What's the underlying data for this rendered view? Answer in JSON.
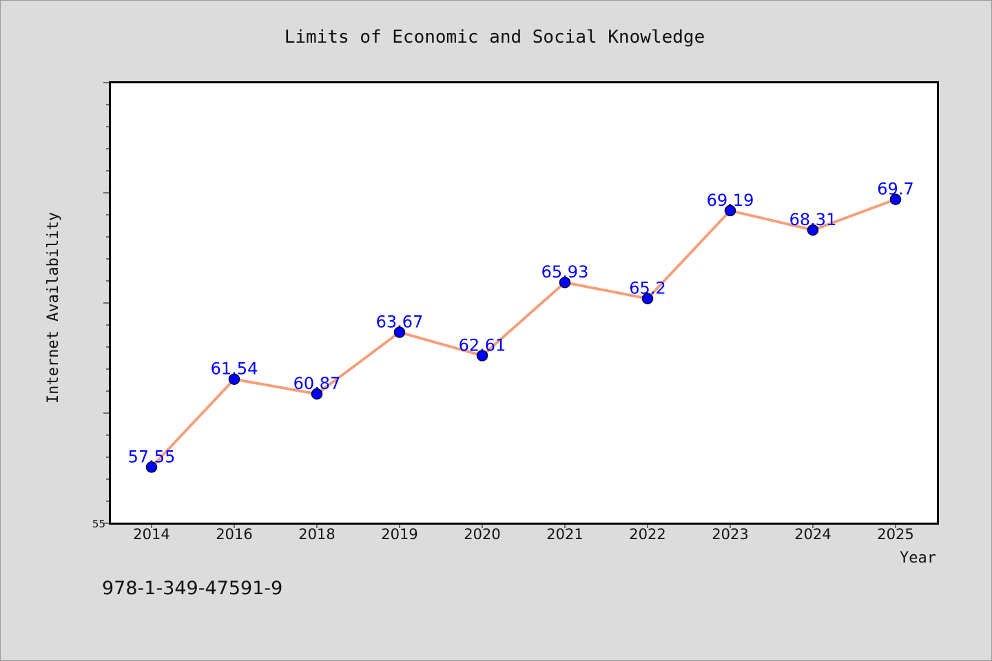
{
  "chart_data": {
    "type": "line",
    "title": "Limits of Economic and Social Knowledge",
    "xlabel": "Year",
    "ylabel": "Internet Availability",
    "categories": [
      "2014",
      "2016",
      "2018",
      "2019",
      "2020",
      "2021",
      "2022",
      "2023",
      "2024",
      "2025"
    ],
    "series": [
      {
        "values": [
          57.55,
          61.54,
          60.87,
          63.67,
          62.61,
          65.93,
          65.2,
          69.19,
          68.31,
          69.7
        ],
        "data_labels": [
          "57.55",
          "61.54",
          "60.87",
          "63.67",
          "62.61",
          "65.93",
          "65.2",
          "69.19",
          "68.31",
          "69.7"
        ]
      }
    ],
    "ylim": [
      55,
      75
    ],
    "y_tick_labels_shown": [
      "55"
    ],
    "grid": false,
    "line_color": "#f4a07c",
    "marker_color": "#0000ff",
    "data_label_color": "#0000ff"
  },
  "footer": {
    "text": "978-1-349-47591-9"
  }
}
